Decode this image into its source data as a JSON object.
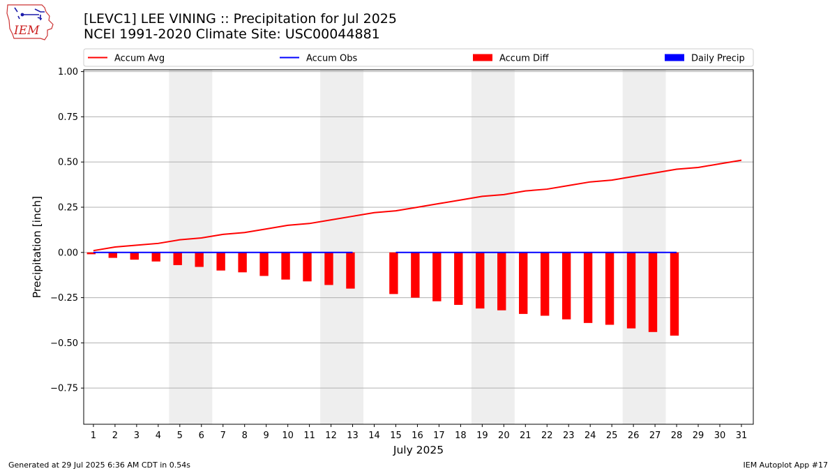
{
  "title_line1": "[LEVC1] LEE VINING :: Precipitation for Jul 2025",
  "title_line2": "NCEI 1991-2020 Climate Site: USC00044881",
  "footer_left": "Generated at 29 Jul 2025 6:36 AM CDT in 0.54s",
  "footer_right": "IEM Autoplot App #17",
  "logo_text": "IEM",
  "colors": {
    "avg": "#ff0000",
    "obs": "#0000ff",
    "diff": "#ff0000",
    "daily": "#0000ff",
    "weekend": "#eeeeee",
    "grid": "#b0b0b0"
  },
  "chart_data": {
    "type": "bar",
    "xlabel": "July 2025",
    "ylabel": "Precipitation [inch]",
    "ylim": [
      -0.95,
      1.01
    ],
    "xlim": [
      0.55,
      31.55
    ],
    "yticks": [
      1.0,
      0.75,
      0.5,
      0.25,
      0.0,
      -0.25,
      -0.5,
      -0.75
    ],
    "ytick_labels": [
      "1.00",
      "0.75",
      "0.50",
      "0.25",
      "0.00",
      "−0.25",
      "−0.50",
      "−0.75"
    ],
    "days": [
      1,
      2,
      3,
      4,
      5,
      6,
      7,
      8,
      9,
      10,
      11,
      12,
      13,
      14,
      15,
      16,
      17,
      18,
      19,
      20,
      21,
      22,
      23,
      24,
      25,
      26,
      27,
      28,
      29,
      30,
      31
    ],
    "grid": "horizontal",
    "weekend_shading": [
      [
        5,
        6
      ],
      [
        12,
        13
      ],
      [
        19,
        20
      ],
      [
        26,
        27
      ]
    ],
    "legend": {
      "placement": "top",
      "entries": [
        {
          "label": "Accum Avg",
          "kind": "line",
          "color": "#ff0000"
        },
        {
          "label": "Accum Obs",
          "kind": "line",
          "color": "#0000ff"
        },
        {
          "label": "Accum Diff",
          "kind": "bar",
          "color": "#ff0000"
        },
        {
          "label": "Daily Precip",
          "kind": "bar",
          "color": "#0000ff"
        }
      ]
    },
    "series": [
      {
        "name": "Accum Avg",
        "type": "line",
        "x": [
          1,
          2,
          3,
          4,
          5,
          6,
          7,
          8,
          9,
          10,
          11,
          12,
          13,
          14,
          15,
          16,
          17,
          18,
          19,
          20,
          21,
          22,
          23,
          24,
          25,
          26,
          27,
          28,
          29,
          30,
          31
        ],
        "values": [
          0.01,
          0.03,
          0.04,
          0.05,
          0.07,
          0.08,
          0.1,
          0.11,
          0.13,
          0.15,
          0.16,
          0.18,
          0.2,
          0.22,
          0.23,
          0.25,
          0.27,
          0.29,
          0.31,
          0.32,
          0.34,
          0.35,
          0.37,
          0.39,
          0.4,
          0.42,
          0.44,
          0.46,
          0.47,
          0.49,
          0.51
        ]
      },
      {
        "name": "Accum Obs",
        "type": "line",
        "segments": [
          {
            "x": [
              1,
              13
            ],
            "values": [
              0.0,
              0.0
            ]
          },
          {
            "x": [
              15,
              28
            ],
            "values": [
              0.0,
              0.0
            ]
          }
        ]
      },
      {
        "name": "Accum Diff",
        "type": "bar",
        "x": [
          1,
          2,
          3,
          4,
          5,
          6,
          7,
          8,
          9,
          10,
          11,
          12,
          13,
          15,
          16,
          17,
          18,
          19,
          20,
          21,
          22,
          23,
          24,
          25,
          26,
          27,
          28
        ],
        "values": [
          -0.01,
          -0.03,
          -0.04,
          -0.05,
          -0.07,
          -0.08,
          -0.1,
          -0.11,
          -0.13,
          -0.15,
          -0.16,
          -0.18,
          -0.2,
          -0.23,
          -0.25,
          -0.27,
          -0.29,
          -0.31,
          -0.32,
          -0.34,
          -0.35,
          -0.37,
          -0.39,
          -0.4,
          -0.42,
          -0.44,
          -0.46
        ]
      },
      {
        "name": "Daily Precip",
        "type": "bar",
        "x": [],
        "values": []
      }
    ]
  }
}
